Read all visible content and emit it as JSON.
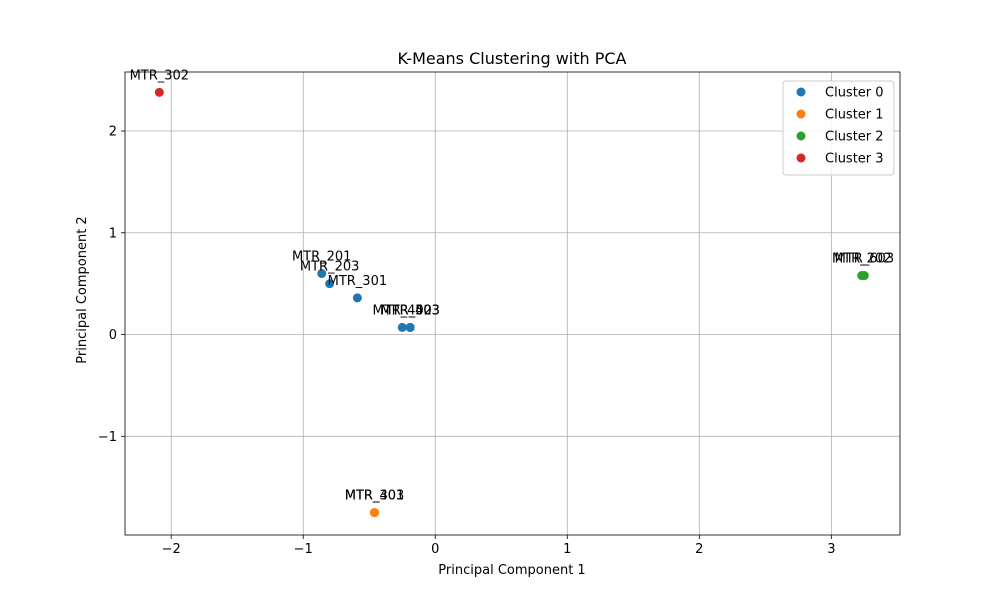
{
  "chart_data": {
    "type": "scatter",
    "title": "K-Means Clustering with PCA",
    "xlabel": "Principal Component 1",
    "ylabel": "Principal Component 2",
    "xlim": [
      -2.35,
      3.52
    ],
    "ylim": [
      -1.97,
      2.58
    ],
    "xticks": [
      -2,
      -1,
      0,
      1,
      2,
      3
    ],
    "yticks": [
      -1,
      0,
      1,
      2
    ],
    "grid": true,
    "legend_position": "top-right",
    "series": [
      {
        "name": "Cluster 0",
        "color": "#1f77b4",
        "points": [
          {
            "label": "MTR_201",
            "x": -0.86,
            "y": 0.6
          },
          {
            "label": "MTR_203",
            "x": -0.8,
            "y": 0.5
          },
          {
            "label": "MTR_301",
            "x": -0.59,
            "y": 0.36
          },
          {
            "label": "MTR_402",
            "x": -0.25,
            "y": 0.07
          },
          {
            "label": "MTR_403",
            "x": -0.19,
            "y": 0.07
          },
          {
            "label": "MTR_503",
            "x": -0.19,
            "y": 0.07
          }
        ]
      },
      {
        "name": "Cluster 1",
        "color": "#ff7f0e",
        "points": [
          {
            "label": "MTR_401",
            "x": -0.46,
            "y": -1.75
          },
          {
            "label": "MTR_303",
            "x": -0.46,
            "y": -1.75
          }
        ]
      },
      {
        "name": "Cluster 2",
        "color": "#2ca02c",
        "points": [
          {
            "label": "MTR_202",
            "x": 3.23,
            "y": 0.58
          },
          {
            "label": "MTR_603",
            "x": 3.25,
            "y": 0.58
          }
        ]
      },
      {
        "name": "Cluster 3",
        "color": "#d62728",
        "points": [
          {
            "label": "MTR_302",
            "x": -2.09,
            "y": 2.38
          }
        ]
      }
    ]
  }
}
